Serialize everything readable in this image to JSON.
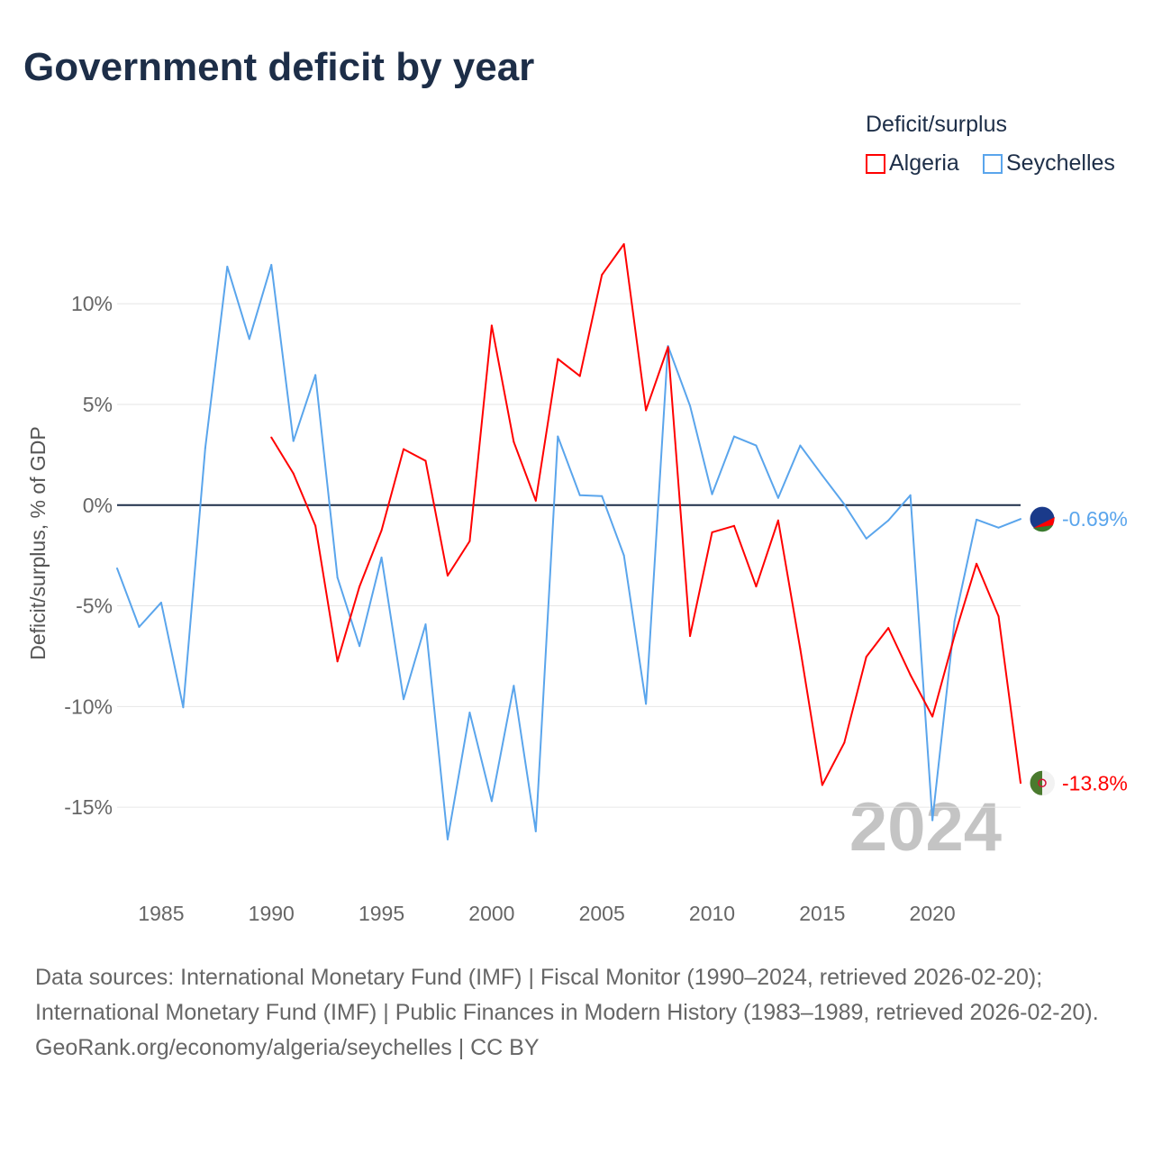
{
  "title": "Government deficit by year",
  "legend_title": "Deficit/surplus",
  "footer": {
    "sources": "Data sources: International Monetary Fund (IMF) | Fiscal Monitor (1990–2024, retrieved 2026-02-20); International Monetary Fund (IMF) | Public Finances in Modern History (1983–1989, retrieved 2026-02-20).",
    "link": "GeoRank.org/economy/algeria/seychelles | CC BY"
  },
  "chart_data": {
    "type": "line",
    "title": "Government deficit by year",
    "xlabel": "",
    "ylabel": "Deficit/surplus, % of GDP",
    "xlim": [
      1983,
      2024
    ],
    "ylim": [
      -19.2,
      13.9
    ],
    "xticks": [
      1985,
      1990,
      1995,
      2000,
      2005,
      2010,
      2015,
      2020
    ],
    "xtick_labels": [
      "1985",
      "1990",
      "1995",
      "2000",
      "2005",
      "2010",
      "2015",
      "2020"
    ],
    "yticks": [
      -15,
      -10,
      -5,
      0,
      5,
      10
    ],
    "ytick_labels": [
      "-15%",
      "-10%",
      "-5%",
      "0%",
      "5%",
      "10%"
    ],
    "grid": true,
    "legend_position": "top-right",
    "year_watermark": "2024",
    "series": [
      {
        "name": "Algeria",
        "color": "#ff0000",
        "end_label": "-13.8%",
        "x": [
          1990,
          1991,
          1992,
          1993,
          1994,
          1995,
          1996,
          1997,
          1998,
          1999,
          2000,
          2001,
          2002,
          2003,
          2004,
          2005,
          2006,
          2007,
          2008,
          2009,
          2010,
          2011,
          2012,
          2013,
          2014,
          2015,
          2016,
          2017,
          2018,
          2019,
          2020,
          2021,
          2022,
          2023,
          2024
        ],
        "values": [
          3.36,
          1.57,
          -1.03,
          -7.76,
          -4.04,
          -1.26,
          2.78,
          2.2,
          -3.5,
          -1.79,
          8.92,
          3.14,
          0.22,
          7.26,
          6.41,
          11.43,
          12.96,
          4.71,
          7.85,
          -6.5,
          -1.35,
          -1.03,
          -4.04,
          -0.76,
          -7.13,
          -13.9,
          -11.8,
          -7.53,
          -6.1,
          -8.43,
          -10.5,
          -6.5,
          -2.91,
          -5.52,
          -13.8
        ]
      },
      {
        "name": "Seychelles",
        "color": "#5aa5ec",
        "end_label": "-0.69%",
        "x": [
          1983,
          1984,
          1985,
          1986,
          1987,
          1988,
          1989,
          1990,
          1991,
          1992,
          1993,
          1994,
          1995,
          1996,
          1997,
          1998,
          1999,
          2000,
          2001,
          2002,
          2003,
          2004,
          2005,
          2006,
          2007,
          2008,
          2009,
          2010,
          2011,
          2012,
          2013,
          2014,
          2015,
          2016,
          2017,
          2018,
          2019,
          2020,
          2021,
          2022,
          2023,
          2024
        ],
        "values": [
          -3.14,
          -6.05,
          -4.84,
          -10.04,
          2.83,
          11.84,
          8.25,
          11.93,
          3.18,
          6.46,
          -3.59,
          -7.0,
          -2.6,
          -9.64,
          -5.92,
          -16.6,
          -10.3,
          -14.7,
          -8.97,
          -16.2,
          3.41,
          0.49,
          0.45,
          -2.5,
          -9.87,
          7.9,
          4.93,
          0.54,
          3.41,
          2.96,
          0.36,
          2.96,
          1.48,
          0.04,
          -1.66,
          -0.76,
          0.49,
          -15.65,
          -5.78,
          -0.72,
          -1.12,
          -0.69
        ]
      }
    ]
  }
}
